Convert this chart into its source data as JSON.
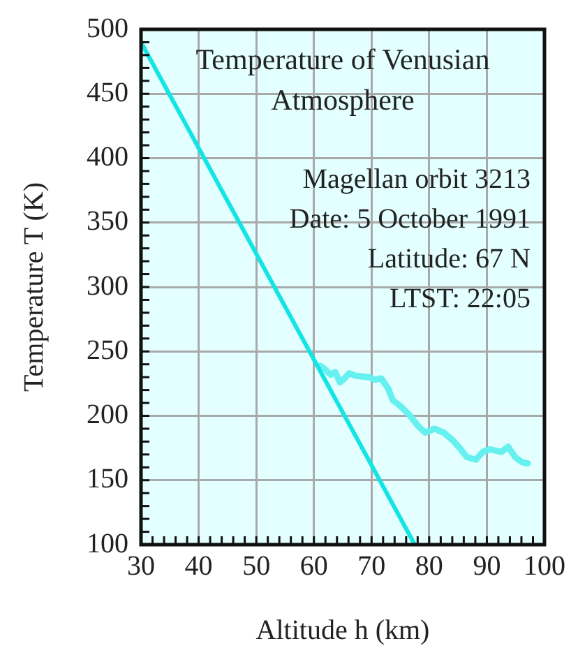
{
  "chart_data": {
    "type": "line",
    "title": "Temperature of Venusian Atmosphere",
    "xlabel": "Altitude h (km)",
    "ylabel": "Temperature T (K)",
    "annotations": [
      "Magellan orbit 3213",
      "Date: 5 October 1991",
      "Latitude: 67 N",
      "LTST: 22:05"
    ],
    "series": [
      {
        "color": "#14e4e4",
        "x": [
          30,
          77.5
        ],
        "values": [
          490,
          100
        ]
      },
      {
        "color": "#66f0f0",
        "x": [
          61,
          61.7,
          62.9,
          63.7,
          64.5,
          65.3,
          66.1,
          67.3,
          69.7,
          70.5,
          71.7,
          72.9,
          73.7,
          74.9,
          76.5,
          78.1,
          79.3,
          80.9,
          82.5,
          84.1,
          85.3,
          86.5,
          88.1,
          89.3,
          90.5,
          92.5,
          93.7,
          94.9,
          96.1,
          97.1
        ],
        "values": [
          239,
          237,
          232,
          234,
          226,
          229,
          233,
          231,
          230,
          228,
          229,
          221,
          212,
          208,
          201,
          192,
          187,
          190,
          187,
          181,
          175,
          168,
          166,
          172,
          174,
          172,
          176,
          168,
          164,
          163
        ]
      }
    ],
    "xlim": [
      30,
      100
    ],
    "ylim": [
      100,
      500
    ],
    "xticks": [
      30,
      {
        "value": 32,
        "label": null
      },
      {
        "value": 34,
        "label": null
      },
      {
        "value": 36,
        "label": null
      },
      {
        "value": 38,
        "label": null
      },
      40,
      {
        "value": 42,
        "label": null
      },
      {
        "value": 44,
        "label": null
      },
      {
        "value": 46,
        "label": null
      },
      {
        "value": 48,
        "label": null
      },
      50,
      {
        "value": 52,
        "label": null
      },
      {
        "value": 54,
        "label": null
      },
      {
        "value": 56,
        "label": null
      },
      {
        "value": 58,
        "label": null
      },
      60,
      {
        "value": 62,
        "label": null
      },
      {
        "value": 64,
        "label": null
      },
      {
        "value": 66,
        "label": null
      },
      {
        "value": 68,
        "label": null
      },
      70,
      {
        "value": 72,
        "label": null
      },
      {
        "value": 74,
        "label": null
      },
      {
        "value": 76,
        "label": null
      },
      {
        "value": 78,
        "label": null
      },
      80,
      {
        "value": 82,
        "label": null
      },
      {
        "value": 84,
        "label": null
      },
      {
        "value": 86,
        "label": null
      },
      {
        "value": 88,
        "label": null
      },
      90,
      {
        "value": 92,
        "label": null
      },
      {
        "value": 94,
        "label": null
      },
      {
        "value": 96,
        "label": null
      },
      {
        "value": 98,
        "label": null
      },
      100
    ],
    "yticks": [
      100,
      {
        "value": 110,
        "label": null
      },
      {
        "value": 120,
        "label": null
      },
      {
        "value": 130,
        "label": null
      },
      {
        "value": 140,
        "label": null
      },
      150,
      {
        "value": 160,
        "label": null
      },
      {
        "value": 170,
        "label": null
      },
      {
        "value": 180,
        "label": null
      },
      {
        "value": 190,
        "label": null
      },
      200,
      {
        "value": 210,
        "label": null
      },
      {
        "value": 220,
        "label": null
      },
      {
        "value": 230,
        "label": null
      },
      {
        "value": 240,
        "label": null
      },
      250,
      {
        "value": 260,
        "label": null
      },
      {
        "value": 270,
        "label": null
      },
      {
        "value": 280,
        "label": null
      },
      {
        "value": 290,
        "label": null
      },
      300,
      {
        "value": 310,
        "label": null
      },
      {
        "value": 320,
        "label": null
      },
      {
        "value": 330,
        "label": null
      },
      {
        "value": 340,
        "label": null
      },
      350,
      {
        "value": 360,
        "label": null
      },
      {
        "value": 370,
        "label": null
      },
      {
        "value": 380,
        "label": null
      },
      {
        "value": 390,
        "label": null
      },
      400,
      {
        "value": 410,
        "label": null
      },
      {
        "value": 420,
        "label": null
      },
      {
        "value": 430,
        "label": null
      },
      {
        "value": 440,
        "label": null
      },
      450,
      {
        "value": 460,
        "label": null
      },
      {
        "value": 470,
        "label": null
      },
      {
        "value": 480,
        "label": null
      },
      {
        "value": 490,
        "label": null
      },
      500
    ],
    "grid": true,
    "legend": false,
    "marker": "none",
    "line_style": "solid"
  }
}
